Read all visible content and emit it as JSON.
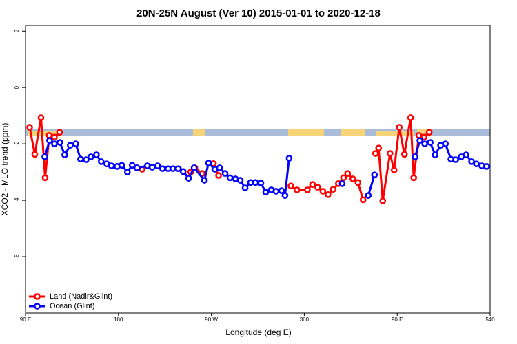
{
  "chart_data": {
    "type": "line",
    "title": "20N-25N August (Ver 10)   2015-01-01 to 2020-12-18",
    "xlabel": "Longitude (deg E)",
    "ylabel": "XCO2 - MLO trend (ppm)",
    "xlim": [
      90,
      540
    ],
    "ylim": [
      -8,
      2.2
    ],
    "xticks": [
      {
        "value": 90,
        "label": "90 E"
      },
      180,
      {
        "value": 270,
        "label": "90 W"
      },
      360,
      {
        "value": 450,
        "label": "90 E"
      },
      540
    ],
    "yticks": [
      2,
      0,
      -2,
      -4,
      -6
    ],
    "legend": "bottom-left",
    "series": [
      {
        "name": "Land (Nadir&Glint)",
        "color": "#ff0000",
        "x": [
          94,
          99,
          105,
          109,
          113,
          118,
          123,
          null,
          198,
          203,
          null,
          250,
          254,
          261,
          null,
          272,
          277,
          null,
          347,
          353,
          363,
          368,
          373,
          378,
          383,
          388,
          393,
          398,
          402,
          407,
          412,
          417,
          null,
          429,
          432,
          436,
          443,
          447,
          452,
          457,
          463,
          466,
          471,
          476,
          481
        ],
        "values": [
          -1.41,
          -2.37,
          -1.07,
          -3.2,
          -1.7,
          -1.76,
          -1.59,
          null,
          -2.85,
          -2.9,
          null,
          -3.0,
          -2.85,
          -3.05,
          null,
          -2.7,
          -3.12,
          null,
          -3.49,
          -3.63,
          -3.63,
          -3.44,
          -3.54,
          -3.68,
          -3.8,
          -3.61,
          -3.41,
          -3.2,
          -3.05,
          -3.24,
          -3.37,
          -3.98,
          null,
          -2.34,
          -2.15,
          -4.02,
          -2.34,
          -2.93,
          -1.41,
          -2.37,
          -1.07,
          -3.2,
          -1.7,
          -1.76,
          -1.59
        ]
      },
      {
        "name": "Ocean (Glint)",
        "color": "#0000ff",
        "x": [
          108.7,
          113.3,
          118,
          123.3,
          128,
          133.3,
          138.7,
          143.3,
          148.7,
          153.3,
          158.7,
          163.3,
          168.7,
          173.3,
          178.7,
          183.3,
          188.7,
          193.3,
          198,
          208,
          212.7,
          218,
          222.7,
          228,
          232.7,
          238,
          242.7,
          248,
          253.3,
          263.3,
          267.3,
          273.3,
          278,
          283.3,
          288,
          293.3,
          298,
          302.7,
          308,
          312.7,
          318,
          322.7,
          328,
          332.7,
          338,
          341.3,
          345.3,
          null,
          396.7,
          null,
          422,
          428,
          null,
          467.3,
          472,
          476.7,
          482,
          486.7,
          492,
          496.7,
          502,
          506.7,
          512,
          516.7,
          522,
          526.7,
          532,
          536.7
        ],
        "values": [
          -2.46,
          -1.88,
          -2.0,
          -1.95,
          -2.39,
          -2.05,
          -2.0,
          -2.54,
          -2.56,
          -2.46,
          -2.39,
          -2.63,
          -2.71,
          -2.78,
          -2.8,
          -2.76,
          -3.0,
          -2.76,
          -2.85,
          -2.78,
          -2.83,
          -2.78,
          -2.88,
          -2.88,
          -2.88,
          -2.88,
          -2.98,
          -3.22,
          -2.85,
          -3.29,
          -2.68,
          -2.9,
          -2.85,
          -3.05,
          -3.2,
          -3.24,
          -3.29,
          -3.56,
          -3.37,
          -3.37,
          -3.39,
          -3.71,
          -3.63,
          -3.68,
          -3.66,
          -3.83,
          -2.51,
          null,
          -3.41,
          null,
          -3.83,
          -3.1,
          null,
          -2.46,
          -1.88,
          -2.0,
          -1.95,
          -2.39,
          -2.05,
          -2.0,
          -2.54,
          -2.56,
          -2.46,
          -2.39,
          -2.63,
          -2.71,
          -2.78,
          -2.8
        ]
      }
    ]
  }
}
